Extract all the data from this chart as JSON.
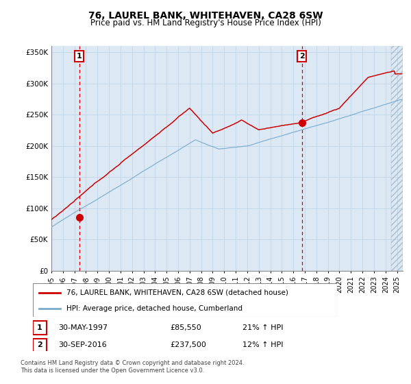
{
  "title": "76, LAUREL BANK, WHITEHAVEN, CA28 6SW",
  "subtitle": "Price paid vs. HM Land Registry's House Price Index (HPI)",
  "title_fontsize": 10,
  "subtitle_fontsize": 8.5,
  "ylabel_ticks": [
    "£0",
    "£50K",
    "£100K",
    "£150K",
    "£200K",
    "£250K",
    "£300K",
    "£350K"
  ],
  "ylabel_values": [
    0,
    50000,
    100000,
    150000,
    200000,
    250000,
    300000,
    350000
  ],
  "ylim": [
    0,
    360000
  ],
  "xlim_start": 1995.0,
  "xlim_end": 2025.5,
  "year_ticks": [
    1995,
    1996,
    1997,
    1998,
    1999,
    2000,
    2001,
    2002,
    2003,
    2004,
    2005,
    2006,
    2007,
    2008,
    2009,
    2010,
    2011,
    2012,
    2013,
    2014,
    2015,
    2016,
    2017,
    2018,
    2019,
    2020,
    2021,
    2022,
    2023,
    2024,
    2025
  ],
  "red_line_color": "#cc0000",
  "blue_line_color": "#77aacc",
  "grid_color": "#c5d8ea",
  "background_color": "#dce9f5",
  "marker1_x": 1997.42,
  "marker1_y": 85550,
  "marker2_x": 2016.75,
  "marker2_y": 237500,
  "vline1_x": 1997.42,
  "vline2_x": 2016.75,
  "legend_red": "76, LAUREL BANK, WHITEHAVEN, CA28 6SW (detached house)",
  "legend_blue": "HPI: Average price, detached house, Cumberland",
  "note1_label": "1",
  "note1_date": "30-MAY-1997",
  "note1_price": "£85,550",
  "note1_hpi": "21% ↑ HPI",
  "note2_label": "2",
  "note2_date": "30-SEP-2016",
  "note2_price": "£237,500",
  "note2_hpi": "12% ↑ HPI",
  "footer": "Contains HM Land Registry data © Crown copyright and database right 2024.\nThis data is licensed under the Open Government Licence v3.0."
}
